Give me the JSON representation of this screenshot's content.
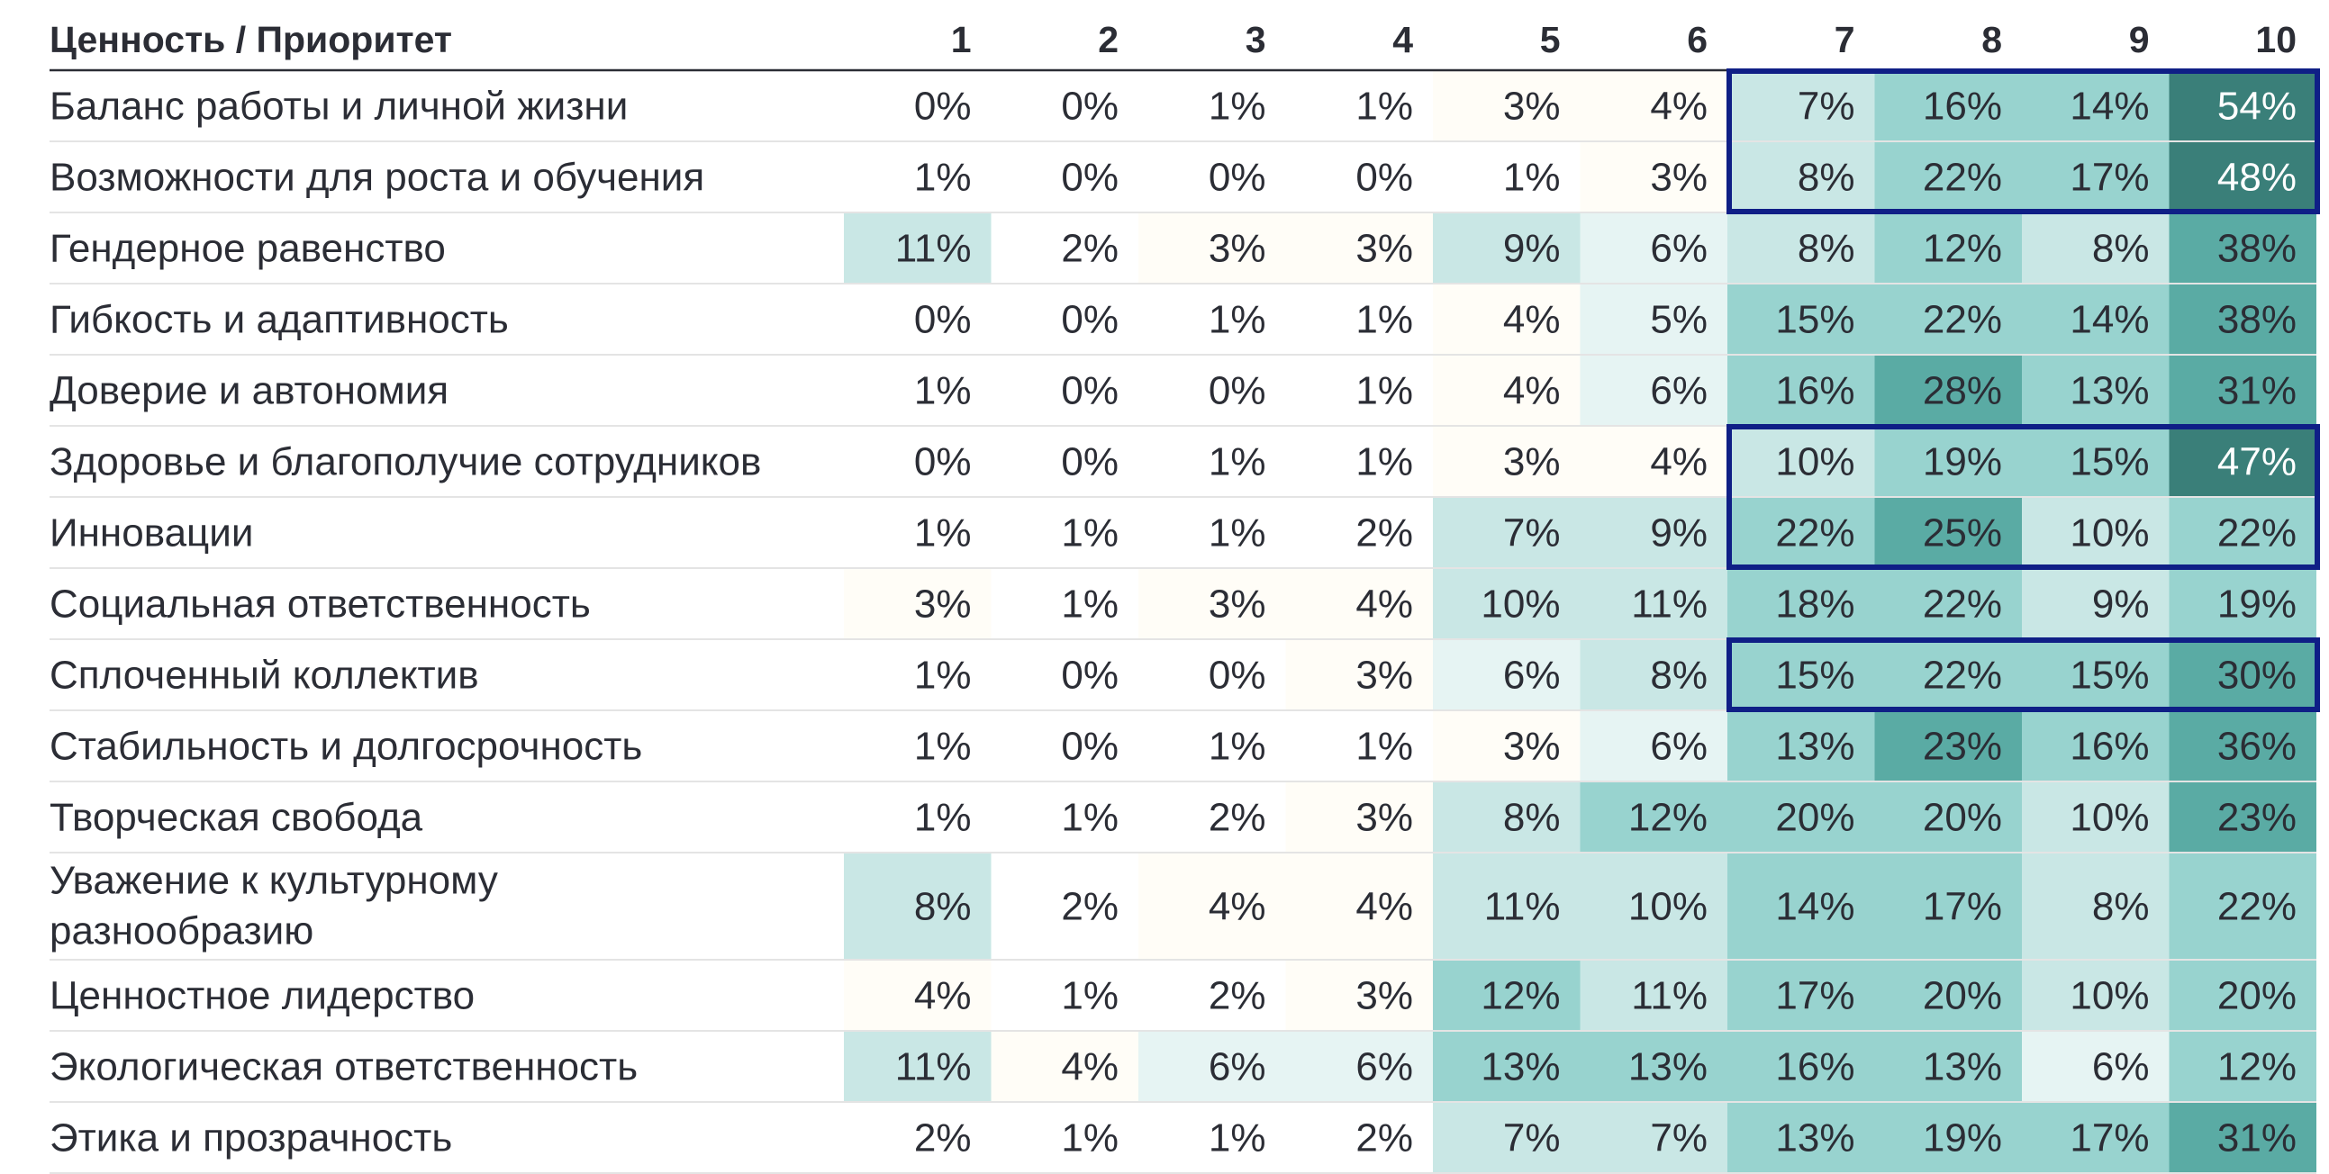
{
  "chart_data": {
    "type": "heatmap",
    "header_label": "Ценность / Приоритет",
    "columns": [
      "1",
      "2",
      "3",
      "4",
      "5",
      "6",
      "7",
      "8",
      "9",
      "10"
    ],
    "rows": [
      {
        "label": "Баланс работы и личной жизни",
        "values": [
          "0%",
          "0%",
          "1%",
          "1%",
          "3%",
          "4%",
          "7%",
          "16%",
          "14%",
          "54%"
        ]
      },
      {
        "label": "Возможности для роста и обучения",
        "values": [
          "1%",
          "0%",
          "0%",
          "0%",
          "1%",
          "3%",
          "8%",
          "22%",
          "17%",
          "48%"
        ]
      },
      {
        "label": "Гендерное равенство",
        "values": [
          "11%",
          "2%",
          "3%",
          "3%",
          "9%",
          "6%",
          "8%",
          "12%",
          "8%",
          "38%"
        ]
      },
      {
        "label": "Гибкость и адаптивность",
        "values": [
          "0%",
          "0%",
          "1%",
          "1%",
          "4%",
          "5%",
          "15%",
          "22%",
          "14%",
          "38%"
        ]
      },
      {
        "label": "Доверие и автономия",
        "values": [
          "1%",
          "0%",
          "0%",
          "1%",
          "4%",
          "6%",
          "16%",
          "28%",
          "13%",
          "31%"
        ]
      },
      {
        "label": "Здоровье и благополучие сотрудников",
        "values": [
          "0%",
          "0%",
          "1%",
          "1%",
          "3%",
          "4%",
          "10%",
          "19%",
          "15%",
          "47%"
        ]
      },
      {
        "label": "Инновации",
        "values": [
          "1%",
          "1%",
          "1%",
          "2%",
          "7%",
          "9%",
          "22%",
          "25%",
          "10%",
          "22%"
        ]
      },
      {
        "label": "Социальная ответственность",
        "values": [
          "3%",
          "1%",
          "3%",
          "4%",
          "10%",
          "11%",
          "18%",
          "22%",
          "9%",
          "19%"
        ]
      },
      {
        "label": "Сплоченный коллектив",
        "values": [
          "1%",
          "0%",
          "0%",
          "3%",
          "6%",
          "8%",
          "15%",
          "22%",
          "15%",
          "30%"
        ]
      },
      {
        "label": "Стабильность и долгосрочность",
        "values": [
          "1%",
          "0%",
          "1%",
          "1%",
          "3%",
          "6%",
          "13%",
          "23%",
          "16%",
          "36%"
        ]
      },
      {
        "label": "Творческая свобода",
        "values": [
          "1%",
          "1%",
          "2%",
          "3%",
          "8%",
          "12%",
          "20%",
          "20%",
          "10%",
          "23%"
        ]
      },
      {
        "label": [
          "Уважение к культурному",
          "разнообразию"
        ],
        "values": [
          "8%",
          "2%",
          "4%",
          "4%",
          "11%",
          "10%",
          "14%",
          "17%",
          "8%",
          "22%"
        ]
      },
      {
        "label": "Ценностное лидерство",
        "values": [
          "4%",
          "1%",
          "2%",
          "3%",
          "12%",
          "11%",
          "17%",
          "20%",
          "10%",
          "20%"
        ]
      },
      {
        "label": "Экологическая ответственность",
        "values": [
          "11%",
          "4%",
          "6%",
          "6%",
          "13%",
          "13%",
          "16%",
          "13%",
          "6%",
          "12%"
        ]
      },
      {
        "label": "Этика и прозрачность",
        "values": [
          "2%",
          "1%",
          "1%",
          "2%",
          "7%",
          "7%",
          "13%",
          "19%",
          "17%",
          "31%"
        ]
      }
    ],
    "highlighted_blocks": [
      {
        "first_row": 0,
        "last_row": 1,
        "first_col": 6,
        "last_col": 9
      },
      {
        "first_row": 5,
        "last_row": 6,
        "first_col": 6,
        "last_col": 9
      },
      {
        "first_row": 8,
        "last_row": 8,
        "first_col": 6,
        "last_col": 9
      }
    ],
    "color_scale": {
      "low": "#ffffff",
      "very_low": "#fffdf7",
      "light": "#e6f4f3",
      "mid": "#c9e7e5",
      "strong": "#98d3cf",
      "high": "#5aaba4",
      "max": "#3a7f79",
      "highlight_border": "#0f1f86"
    },
    "grid": false
  }
}
